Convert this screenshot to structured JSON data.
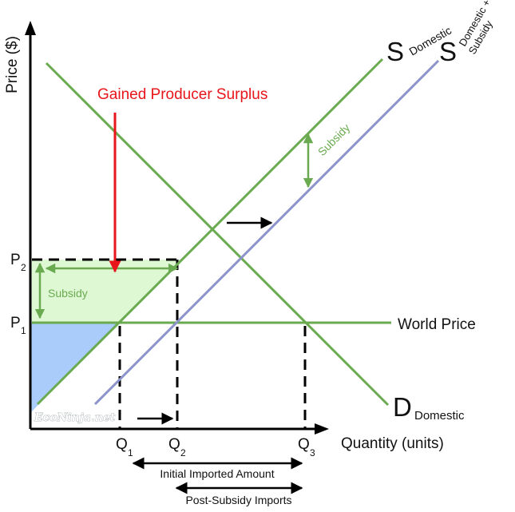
{
  "axes": {
    "y_label": "Price ($)",
    "x_label": "Quantity (units)"
  },
  "price_labels": {
    "p2": "P",
    "p2_sub": "2",
    "p1": "P",
    "p1_sub": "1"
  },
  "quantity_labels": {
    "q1": "Q",
    "q1_sub": "1",
    "q2": "Q",
    "q2_sub": "2",
    "q3": "Q",
    "q3_sub": "3"
  },
  "curves": {
    "supply_domestic": {
      "letter": "S",
      "sub": "Domestic"
    },
    "supply_subsidy": {
      "letter": "S",
      "sub_line1": "Domestic +",
      "sub_line2": "Subsidy"
    },
    "demand_domestic": {
      "letter": "D",
      "sub": "Domestic"
    },
    "world_price": "World Price"
  },
  "annotations": {
    "gained_producer_surplus": "Gained Producer Surplus",
    "subsidy_left": "Subsidy",
    "subsidy_upper": "Subsidy",
    "watermark": "EcoNinja.net"
  },
  "brackets": {
    "initial_imports": "Initial Imported Amount",
    "post_subsidy_imports": "Post-Subsidy Imports"
  },
  "colors": {
    "green": "#6aaa50",
    "blue": "#8c93c9",
    "red": "#e8151b",
    "surplus_green": "#dff8d4",
    "surplus_blue": "#a9ccfb",
    "black": "#000000"
  }
}
